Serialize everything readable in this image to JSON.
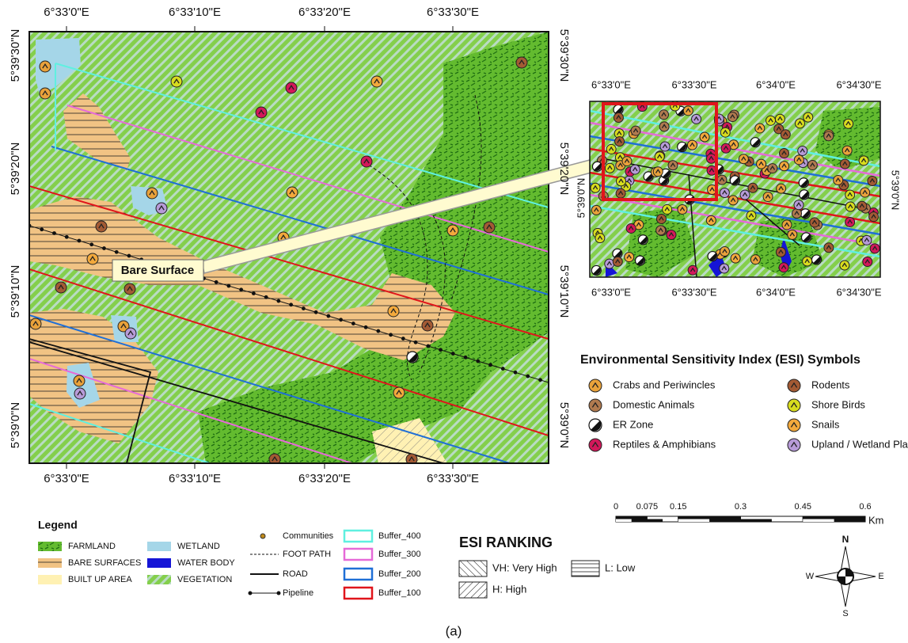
{
  "main_map": {
    "top_labels": [
      "6°33'0\"E",
      "6°33'10\"E",
      "6°33'20\"E",
      "6°33'30\"E"
    ],
    "bottom_labels": [
      "6°33'0\"E",
      "6°33'10\"E",
      "6°33'20\"E",
      "6°33'30\"E"
    ],
    "left_labels": [
      "5°39'30\"N",
      "5°39'20\"N",
      "5°39'10\"N",
      "5°39'0\"N"
    ],
    "right_labels": [
      "5°39'30\"N",
      "5°39'20\"N",
      "5°39'10\"N",
      "5°39'0\"N"
    ],
    "callout": "Bare Surface"
  },
  "inset_map": {
    "top_labels": [
      "6°33'0\"E",
      "6°33'30\"E",
      "6°34'0\"E",
      "6°34'30\"E"
    ],
    "bottom_labels": [
      "6°33'0\"E",
      "6°33'30\"E",
      "6°34'0\"E",
      "6°34'30\"E"
    ],
    "left_labels": [
      "5°39'0\"N"
    ],
    "right_labels": [
      "5°39'0\"N"
    ]
  },
  "esi_symbols": {
    "title": "Environmental Sensitivity Index (ESI) Symbols",
    "items": [
      {
        "label": "Crabs and Periwincles",
        "color": "#e9a23b"
      },
      {
        "label": "Rodents",
        "color": "#a35a34"
      },
      {
        "label": "Domestic Animals",
        "color": "#b07a4f"
      },
      {
        "label": "Shore Birds",
        "color": "#d8dc1e"
      },
      {
        "label": "ER Zone",
        "color": "#ffffff"
      },
      {
        "label": "Snails",
        "color": "#f3a93c"
      },
      {
        "label": "Reptiles & Amphibians",
        "color": "#d3185a"
      },
      {
        "label": "Upland / Wetland Plant",
        "color": "#b79bd8"
      }
    ]
  },
  "scale_bar": {
    "ticks": [
      0,
      0.075,
      0.15,
      0.3,
      0.45,
      0.6
    ],
    "unit": "Km"
  },
  "legend": {
    "title": "Legend",
    "items": [
      "FARMLAND",
      "BARE SURFACES",
      "BUILT UP AREA",
      "WETLAND",
      "WATER BODY",
      "VEGETATION",
      "Communities",
      "FOOT PATH",
      "ROAD",
      "Pipeline",
      "Buffer_400",
      "Buffer_300",
      "Buffer_200",
      "Buffer_100"
    ]
  },
  "esi_ranking": {
    "title": "ESI RANKING",
    "items": [
      "VH: Very High",
      "H: High",
      "L: Low"
    ]
  },
  "compass": {
    "n": "N",
    "e": "E",
    "s": "S",
    "w": "W"
  },
  "caption": "(a)"
}
